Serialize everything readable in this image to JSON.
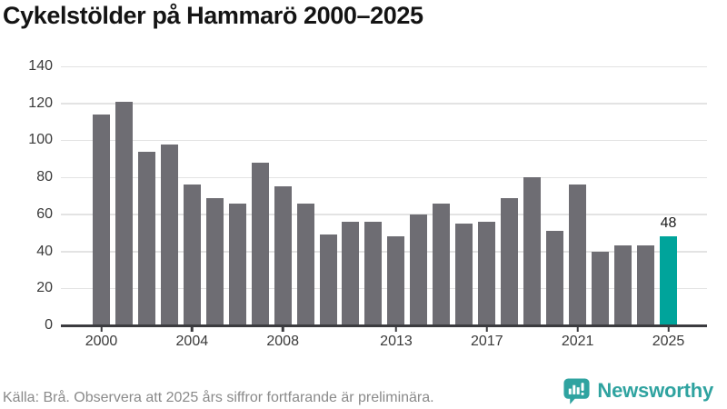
{
  "title": "Cykelstölder på Hammarö 2000–2025",
  "chart_data": {
    "type": "bar",
    "title": "Cykelstölder på Hammarö 2000–2025",
    "categories": [
      "2000",
      "2001",
      "2002",
      "2003",
      "2004",
      "2005",
      "2006",
      "2007",
      "2008",
      "2009",
      "2010",
      "2011",
      "2012",
      "2013",
      "2014",
      "2015",
      "2016",
      "2017",
      "2018",
      "2019",
      "2020",
      "2021",
      "2022",
      "2023",
      "2024",
      "2025"
    ],
    "values": [
      114,
      121,
      94,
      98,
      76,
      69,
      66,
      88,
      75,
      66,
      49,
      56,
      56,
      48,
      60,
      66,
      55,
      56,
      69,
      80,
      51,
      76,
      40,
      43,
      43,
      48
    ],
    "x_tick_labels": [
      "2000",
      "2004",
      "2008",
      "2013",
      "2017",
      "2021",
      "2025"
    ],
    "ylim": [
      0,
      140
    ],
    "ytick_step": 20,
    "grid": true,
    "legend_position": "none",
    "bar_color": "#6e6d73",
    "highlight": {
      "index": 25,
      "label": "48",
      "color": "#00a49b"
    }
  },
  "footer": {
    "source": "Källa: Brå. Observera att 2025 års siffror fortfarande är preliminära.",
    "logo_text": "Newsworthy"
  },
  "colors": {
    "accent_teal": "#00a49b",
    "bar_gray": "#6e6d73",
    "gridline": "#e3e3e3",
    "axis_line": "#3b3b3f",
    "title_text": "#141414",
    "axis_text": "#3a3a3a",
    "muted_text": "#8a8a8a",
    "logo_teal": "#2fa3a0"
  }
}
